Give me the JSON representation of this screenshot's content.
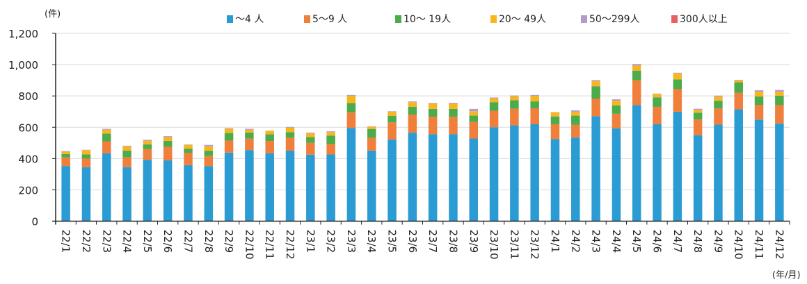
{
  "chart_data": {
    "type": "bar",
    "stacked": true,
    "title": "",
    "ylabel": "(件)",
    "xlabel": "(年/月)",
    "ylim": [
      0,
      1200
    ],
    "yticks": [
      0,
      200,
      400,
      600,
      800,
      1000,
      1200
    ],
    "ytick_labels": [
      "0",
      "200",
      "400",
      "600",
      "800",
      "1,000",
      "1,200"
    ],
    "grid": true,
    "legend_position": "top",
    "categories": [
      "22/1",
      "22/2",
      "22/3",
      "22/4",
      "22/5",
      "22/6",
      "22/7",
      "22/8",
      "22/9",
      "22/10",
      "22/11",
      "22/12",
      "23/1",
      "23/2",
      "23/3",
      "23/4",
      "23/5",
      "23/6",
      "23/7",
      "23/8",
      "23/9",
      "23/10",
      "23/11",
      "23/12",
      "24/1",
      "24/2",
      "24/3",
      "24/4",
      "24/5",
      "24/6",
      "24/7",
      "24/8",
      "24/9",
      "24/10",
      "24/11",
      "24/12"
    ],
    "series": [
      {
        "name": "～4 人",
        "color": "#2A9BD3",
        "values": [
          352,
          345,
          434,
          345,
          392,
          388,
          358,
          352,
          438,
          454,
          434,
          450,
          425,
          426,
          596,
          451,
          522,
          565,
          556,
          556,
          528,
          600,
          612,
          619,
          525,
          534,
          671,
          593,
          742,
          619,
          699,
          549,
          617,
          714,
          649,
          624
        ]
      },
      {
        "name": "5～9 人",
        "color": "#F07F3C",
        "values": [
          55,
          55,
          76,
          62,
          68,
          87,
          79,
          64,
          77,
          73,
          78,
          84,
          75,
          67,
          99,
          82,
          109,
          116,
          111,
          111,
          107,
          105,
          106,
          102,
          94,
          81,
          112,
          93,
          158,
          111,
          146,
          100,
          103,
          106,
          94,
          119
        ]
      },
      {
        "name": "10～ 19人",
        "color": "#4CAB4A",
        "values": [
          22,
          26,
          50,
          44,
          30,
          38,
          26,
          34,
          48,
          39,
          43,
          35,
          37,
          54,
          60,
          56,
          42,
          50,
          50,
          50,
          40,
          55,
          55,
          44,
          50,
          59,
          79,
          54,
          62,
          61,
          61,
          44,
          49,
          67,
          54,
          59
        ]
      },
      {
        "name": "20～ 49人",
        "color": "#F9B51E",
        "values": [
          15,
          28,
          25,
          27,
          23,
          24,
          24,
          28,
          27,
          18,
          22,
          28,
          25,
          22,
          45,
          15,
          26,
          29,
          33,
          33,
          27,
          25,
          25,
          35,
          26,
          25,
          32,
          30,
          32,
          22,
          38,
          18,
          26,
          13,
          30,
          25
        ]
      },
      {
        "name": "50～299人",
        "color": "#B59BCB",
        "values": [
          4,
          2,
          5,
          4,
          7,
          6,
          3,
          9,
          4,
          6,
          1,
          5,
          4,
          5,
          6,
          2,
          3,
          5,
          5,
          6,
          15,
          5,
          5,
          6,
          2,
          9,
          7,
          9,
          10,
          2,
          4,
          7,
          7,
          3,
          9,
          11
        ]
      },
      {
        "name": "300人以上",
        "color": "#E8605F",
        "values": [
          0,
          0,
          0,
          0,
          0,
          0,
          0,
          0,
          0,
          0,
          0,
          0,
          0,
          0,
          0,
          0,
          0,
          0,
          0,
          0,
          0,
          0,
          0,
          0,
          0,
          0,
          0,
          0,
          0,
          0,
          0,
          0,
          0,
          0,
          0,
          0
        ]
      }
    ]
  }
}
